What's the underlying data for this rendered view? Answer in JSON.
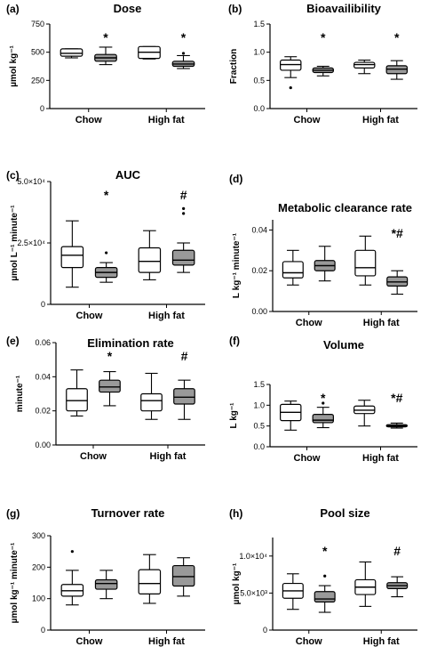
{
  "chart_data": [
    {
      "panel_label": "(a)",
      "title": "Dose",
      "type": "box",
      "ylabel": "µmol kg⁻¹",
      "ylim": [
        0,
        750
      ],
      "yticks": [
        {
          "v": 0,
          "t": "0"
        },
        {
          "v": 250,
          "t": "250"
        },
        {
          "v": 500,
          "t": "500"
        },
        {
          "v": 750,
          "t": "750"
        }
      ],
      "categories": [
        "Chow",
        "High fat"
      ],
      "boxes": [
        {
          "group": 0,
          "fill": "#ffffff",
          "whisker_low": 450,
          "q1": 465,
          "median": 490,
          "q3": 530,
          "whisker_high": 530,
          "outliers": []
        },
        {
          "group": 0,
          "fill": "#999999",
          "whisker_low": 390,
          "q1": 420,
          "median": 450,
          "q3": 480,
          "whisker_high": 545,
          "outliers": []
        },
        {
          "group": 1,
          "fill": "#ffffff",
          "whisker_low": 440,
          "q1": 445,
          "median": 500,
          "q3": 550,
          "whisker_high": 550,
          "outliers": []
        },
        {
          "group": 1,
          "fill": "#999999",
          "whisker_low": 355,
          "q1": 375,
          "median": 395,
          "q3": 420,
          "whisker_high": 470,
          "outliers": [
            490
          ]
        }
      ],
      "annotations": [
        {
          "group": 0,
          "text": "*"
        },
        {
          "group": 1,
          "text": "*"
        }
      ]
    },
    {
      "panel_label": "(b)",
      "title": "Bioavailibility",
      "type": "box",
      "ylabel": "Fraction",
      "ylim": [
        0,
        1.5
      ],
      "yticks": [
        {
          "v": 0,
          "t": "0.0"
        },
        {
          "v": 0.5,
          "t": "0.5"
        },
        {
          "v": 1.0,
          "t": "1.0"
        },
        {
          "v": 1.5,
          "t": "1.5"
        }
      ],
      "categories": [
        "Chow",
        "High fat"
      ],
      "boxes": [
        {
          "group": 0,
          "fill": "#ffffff",
          "whisker_low": 0.55,
          "q1": 0.68,
          "median": 0.78,
          "q3": 0.86,
          "whisker_high": 0.92,
          "outliers": [
            0.37
          ]
        },
        {
          "group": 0,
          "fill": "#999999",
          "whisker_low": 0.58,
          "q1": 0.64,
          "median": 0.68,
          "q3": 0.72,
          "whisker_high": 0.75,
          "outliers": []
        },
        {
          "group": 1,
          "fill": "#ffffff",
          "whisker_low": 0.62,
          "q1": 0.72,
          "median": 0.78,
          "q3": 0.82,
          "whisker_high": 0.86,
          "outliers": []
        },
        {
          "group": 1,
          "fill": "#999999",
          "whisker_low": 0.52,
          "q1": 0.62,
          "median": 0.7,
          "q3": 0.76,
          "whisker_high": 0.85,
          "outliers": []
        }
      ],
      "annotations": [
        {
          "group": 0,
          "text": "*"
        },
        {
          "group": 1,
          "text": "*"
        }
      ]
    },
    {
      "panel_label": "(c)",
      "title": "AUC",
      "type": "box",
      "ylabel": "µmol L⁻¹ minute⁻¹",
      "ylim": [
        0,
        50000
      ],
      "yticks": [
        {
          "v": 0,
          "t": "0"
        },
        {
          "v": 25000,
          "t": "2.5×10⁴"
        },
        {
          "v": 50000,
          "t": "5.0×10⁴"
        }
      ],
      "categories": [
        "Chow",
        "High fat"
      ],
      "boxes": [
        {
          "group": 0,
          "fill": "#ffffff",
          "whisker_low": 7000,
          "q1": 15000,
          "median": 20000,
          "q3": 23500,
          "whisker_high": 34000,
          "outliers": []
        },
        {
          "group": 0,
          "fill": "#999999",
          "whisker_low": 9000,
          "q1": 11000,
          "median": 13000,
          "q3": 15000,
          "whisker_high": 17000,
          "outliers": [
            21000
          ]
        },
        {
          "group": 1,
          "fill": "#ffffff",
          "whisker_low": 10000,
          "q1": 13000,
          "median": 17500,
          "q3": 23000,
          "whisker_high": 30000,
          "outliers": []
        },
        {
          "group": 1,
          "fill": "#999999",
          "whisker_low": 13000,
          "q1": 16000,
          "median": 18000,
          "q3": 22000,
          "whisker_high": 25000,
          "outliers": [
            37000,
            39000
          ]
        }
      ],
      "annotations": [
        {
          "group": 0,
          "text": "*"
        },
        {
          "group": 1,
          "text": "#"
        }
      ]
    },
    {
      "panel_label": "(d)",
      "title": "Metabolic clearance rate",
      "type": "box",
      "ylabel": "L kg⁻¹ minute⁻¹",
      "ylim": [
        0,
        0.045
      ],
      "yticks": [
        {
          "v": 0,
          "t": "0.00"
        },
        {
          "v": 0.02,
          "t": "0.02"
        },
        {
          "v": 0.04,
          "t": "0.04"
        }
      ],
      "categories": [
        "Chow",
        "High fat"
      ],
      "boxes": [
        {
          "group": 0,
          "fill": "#ffffff",
          "whisker_low": 0.013,
          "q1": 0.0165,
          "median": 0.019,
          "q3": 0.0245,
          "whisker_high": 0.03,
          "outliers": []
        },
        {
          "group": 0,
          "fill": "#999999",
          "whisker_low": 0.015,
          "q1": 0.02,
          "median": 0.0225,
          "q3": 0.025,
          "whisker_high": 0.032,
          "outliers": []
        },
        {
          "group": 1,
          "fill": "#ffffff",
          "whisker_low": 0.013,
          "q1": 0.0175,
          "median": 0.0215,
          "q3": 0.03,
          "whisker_high": 0.037,
          "outliers": []
        },
        {
          "group": 1,
          "fill": "#999999",
          "whisker_low": 0.0085,
          "q1": 0.0125,
          "median": 0.0145,
          "q3": 0.017,
          "whisker_high": 0.02,
          "outliers": []
        }
      ],
      "annotations": [
        {
          "group": 1,
          "text": "*#"
        }
      ]
    },
    {
      "panel_label": "(e)",
      "title": "Elimination rate",
      "type": "box",
      "ylabel": "minute⁻¹",
      "ylim": [
        0,
        0.06
      ],
      "yticks": [
        {
          "v": 0,
          "t": "0.00"
        },
        {
          "v": 0.02,
          "t": "0.02"
        },
        {
          "v": 0.04,
          "t": "0.04"
        },
        {
          "v": 0.06,
          "t": "0.06"
        }
      ],
      "categories": [
        "Chow",
        "High fat"
      ],
      "boxes": [
        {
          "group": 0,
          "fill": "#ffffff",
          "whisker_low": 0.017,
          "q1": 0.02,
          "median": 0.026,
          "q3": 0.033,
          "whisker_high": 0.044,
          "outliers": []
        },
        {
          "group": 0,
          "fill": "#999999",
          "whisker_low": 0.023,
          "q1": 0.031,
          "median": 0.034,
          "q3": 0.038,
          "whisker_high": 0.043,
          "outliers": []
        },
        {
          "group": 1,
          "fill": "#ffffff",
          "whisker_low": 0.015,
          "q1": 0.02,
          "median": 0.026,
          "q3": 0.03,
          "whisker_high": 0.042,
          "outliers": []
        },
        {
          "group": 1,
          "fill": "#999999",
          "whisker_low": 0.015,
          "q1": 0.024,
          "median": 0.028,
          "q3": 0.033,
          "whisker_high": 0.038,
          "outliers": []
        }
      ],
      "annotations": [
        {
          "group": 0,
          "text": "*"
        },
        {
          "group": 1,
          "text": "#"
        }
      ]
    },
    {
      "panel_label": "(f)",
      "title": "Volume",
      "type": "box",
      "ylabel": "L kg⁻¹",
      "ylim": [
        0,
        1.5
      ],
      "yticks": [
        {
          "v": 0,
          "t": "0.0"
        },
        {
          "v": 0.5,
          "t": "0.5"
        },
        {
          "v": 1.0,
          "t": "1.0"
        },
        {
          "v": 1.5,
          "t": "1.5"
        }
      ],
      "categories": [
        "Chow",
        "High fat"
      ],
      "boxes": [
        {
          "group": 0,
          "fill": "#ffffff",
          "whisker_low": 0.4,
          "q1": 0.63,
          "median": 0.83,
          "q3": 1.02,
          "whisker_high": 1.1,
          "outliers": []
        },
        {
          "group": 0,
          "fill": "#999999",
          "whisker_low": 0.46,
          "q1": 0.58,
          "median": 0.64,
          "q3": 0.78,
          "whisker_high": 0.95,
          "outliers": [
            1.05
          ]
        },
        {
          "group": 1,
          "fill": "#ffffff",
          "whisker_low": 0.5,
          "q1": 0.8,
          "median": 0.88,
          "q3": 0.98,
          "whisker_high": 1.12,
          "outliers": []
        },
        {
          "group": 1,
          "fill": "#999999",
          "whisker_low": 0.45,
          "q1": 0.48,
          "median": 0.5,
          "q3": 0.53,
          "whisker_high": 0.57,
          "outliers": []
        }
      ],
      "annotations": [
        {
          "group": 0,
          "text": "*"
        },
        {
          "group": 1,
          "text": "*#"
        }
      ]
    },
    {
      "panel_label": "(g)",
      "title": "Turnover rate",
      "type": "box",
      "ylabel": "µmol kg⁻¹ minute⁻¹",
      "ylim": [
        0,
        300
      ],
      "yticks": [
        {
          "v": 0,
          "t": "0"
        },
        {
          "v": 100,
          "t": "100"
        },
        {
          "v": 200,
          "t": "200"
        },
        {
          "v": 300,
          "t": "300"
        }
      ],
      "categories": [
        "Chow",
        "High fat"
      ],
      "boxes": [
        {
          "group": 0,
          "fill": "#ffffff",
          "whisker_low": 80,
          "q1": 108,
          "median": 125,
          "q3": 145,
          "whisker_high": 190,
          "outliers": [
            250
          ]
        },
        {
          "group": 0,
          "fill": "#999999",
          "whisker_low": 100,
          "q1": 130,
          "median": 148,
          "q3": 160,
          "whisker_high": 190,
          "outliers": []
        },
        {
          "group": 1,
          "fill": "#ffffff",
          "whisker_low": 85,
          "q1": 115,
          "median": 148,
          "q3": 192,
          "whisker_high": 240,
          "outliers": []
        },
        {
          "group": 1,
          "fill": "#999999",
          "whisker_low": 108,
          "q1": 140,
          "median": 170,
          "q3": 205,
          "whisker_high": 230,
          "outliers": []
        }
      ],
      "annotations": []
    },
    {
      "panel_label": "(h)",
      "title": "Pool size",
      "type": "box",
      "ylabel": "µmol kg⁻¹",
      "ylim": [
        0,
        12500
      ],
      "yticks": [
        {
          "v": 0,
          "t": "0"
        },
        {
          "v": 5000,
          "t": "5.0×10³"
        },
        {
          "v": 10000,
          "t": "1.0×10⁴"
        }
      ],
      "categories": [
        "Chow",
        "High fat"
      ],
      "boxes": [
        {
          "group": 0,
          "fill": "#ffffff",
          "whisker_low": 2800,
          "q1": 4300,
          "median": 5300,
          "q3": 6300,
          "whisker_high": 7600,
          "outliers": []
        },
        {
          "group": 0,
          "fill": "#999999",
          "whisker_low": 2400,
          "q1": 3800,
          "median": 4200,
          "q3": 5200,
          "whisker_high": 6000,
          "outliers": [
            7300
          ]
        },
        {
          "group": 1,
          "fill": "#ffffff",
          "whisker_low": 3200,
          "q1": 4800,
          "median": 5800,
          "q3": 6800,
          "whisker_high": 9200,
          "outliers": []
        },
        {
          "group": 1,
          "fill": "#999999",
          "whisker_low": 4500,
          "q1": 5600,
          "median": 6000,
          "q3": 6400,
          "whisker_high": 7200,
          "outliers": []
        }
      ],
      "annotations": [
        {
          "group": 0,
          "text": "*"
        },
        {
          "group": 1,
          "text": "#"
        }
      ]
    }
  ]
}
